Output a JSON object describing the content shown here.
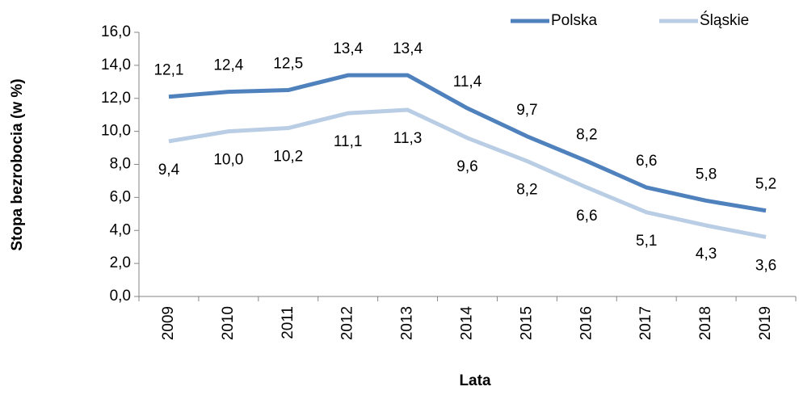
{
  "chart_data": {
    "type": "line",
    "x_label": "Lata",
    "y_label": "Stopa bezrobocia (w %)",
    "categories": [
      "2009",
      "2010",
      "2011",
      "2012",
      "2013",
      "2014",
      "2015",
      "2016",
      "2017",
      "2018",
      "2019"
    ],
    "series": [
      {
        "name": "Polska",
        "color": "#4f81bd",
        "values": [
          12.1,
          12.4,
          12.5,
          13.4,
          13.4,
          11.4,
          9.7,
          8.2,
          6.6,
          5.8,
          5.2
        ],
        "value_labels": [
          "12,1",
          "12,4",
          "12,5",
          "13,4",
          "13,4",
          "11,4",
          "9,7",
          "8,2",
          "6,6",
          "5,8",
          "5,2"
        ]
      },
      {
        "name": "Śląskie",
        "color": "#b9cde5",
        "values": [
          9.4,
          10.0,
          10.2,
          11.1,
          11.3,
          9.6,
          8.2,
          6.6,
          5.1,
          4.3,
          3.6
        ],
        "value_labels": [
          "9,4",
          "10,0",
          "10,2",
          "11,1",
          "11,3",
          "9,6",
          "8,2",
          "6,6",
          "5,1",
          "4,3",
          "3,6"
        ]
      }
    ],
    "ylim": [
      0,
      16
    ],
    "yticks": [
      {
        "value": 0,
        "label": "0,0"
      },
      {
        "value": 2,
        "label": "2,0"
      },
      {
        "value": 4,
        "label": "4,0"
      },
      {
        "value": 6,
        "label": "6,0"
      },
      {
        "value": 8,
        "label": "8,0"
      },
      {
        "value": 10,
        "label": "10,0"
      },
      {
        "value": 12,
        "label": "12,0"
      },
      {
        "value": 14,
        "label": "14,0"
      },
      {
        "value": 16,
        "label": "16,0"
      }
    ],
    "grid": false,
    "legend": "upper right"
  }
}
